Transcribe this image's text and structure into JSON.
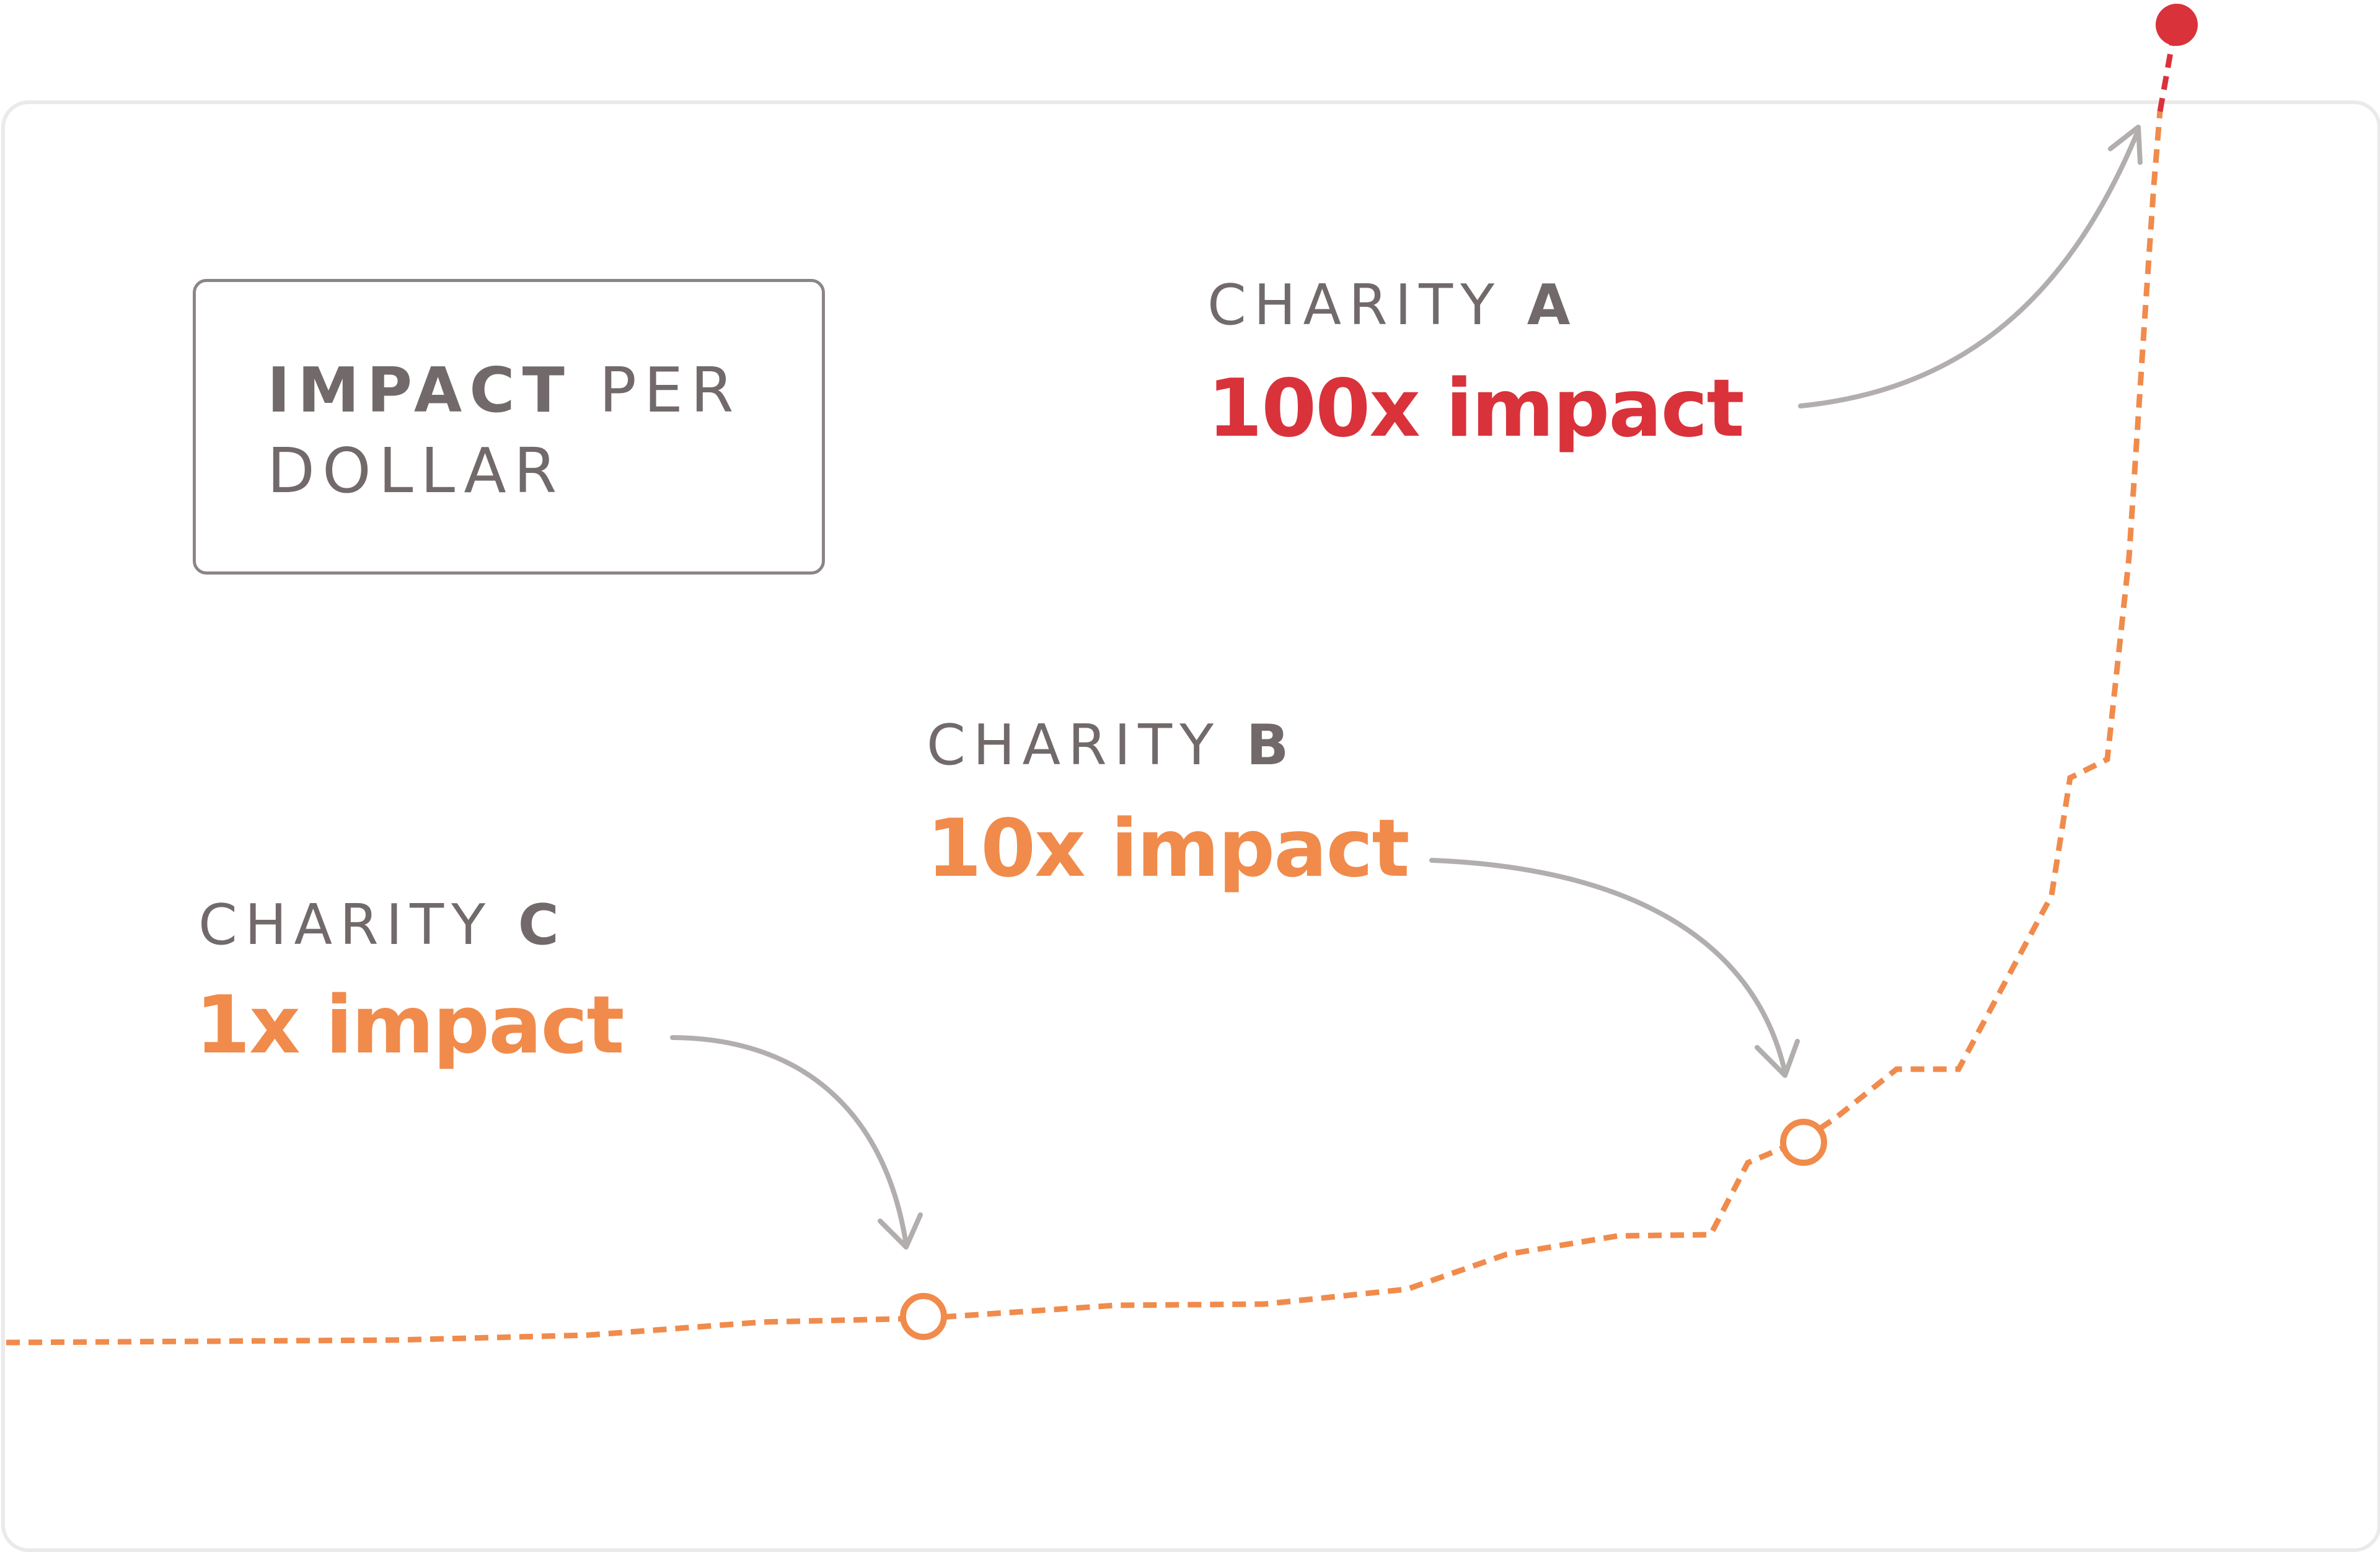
{
  "legend": {
    "bold": "IMPACT",
    "rest_line1": " PER",
    "line2": "DOLLAR"
  },
  "charities": [
    {
      "label": "CHARITY",
      "letter": "A",
      "impact": "100x impact",
      "color": "#d9323b"
    },
    {
      "label": "CHARITY",
      "letter": "B",
      "impact": "10x impact",
      "color": "#f08b4c"
    },
    {
      "label": "CHARITY",
      "letter": "C",
      "impact": "1x impact",
      "color": "#f08b4c"
    }
  ],
  "colors": {
    "curve": "#f08b4c",
    "curve_top": "#d9323b",
    "arrow": "#b2aeae",
    "card_border": "#ebe9e9",
    "text_gray": "#726a6a"
  }
}
